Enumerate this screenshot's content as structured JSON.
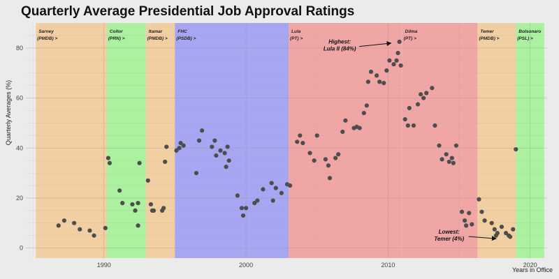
{
  "chart_data": {
    "type": "scatter",
    "title": "Quarterly Average Presidential Job Approval Ratings",
    "xlabel": "Years in Office",
    "ylabel": "Quarterly Averages (%)",
    "xlim": [
      1984.5,
      2021.2
    ],
    "ylim": [
      -4,
      90
    ],
    "xticks": [
      1990,
      2000,
      2010,
      2020
    ],
    "yticks": [
      0,
      20,
      40,
      60,
      80
    ],
    "grid": true,
    "periods": [
      {
        "name": "Sarney",
        "party": "(PMDB) >",
        "start": 1985.2,
        "end": 1990.2,
        "color": "#f1cfa3"
      },
      {
        "name": "Collor",
        "party": "(PRN) >",
        "start": 1990.2,
        "end": 1992.95,
        "color": "#abf1a0"
      },
      {
        "name": "Itamar",
        "party": "(PMDB) >",
        "start": 1992.95,
        "end": 1995.0,
        "color": "#f1cfa3"
      },
      {
        "name": "FHC",
        "party": "(PSDB) >",
        "start": 1995.0,
        "end": 2003.0,
        "color": "#a6a6f2"
      },
      {
        "name": "Lula",
        "party": "(PT) >",
        "start": 2003.0,
        "end": 2011.0,
        "color": "#f1a6a6"
      },
      {
        "name": "Dilma",
        "party": "(PT) >",
        "start": 2011.0,
        "end": 2016.3,
        "color": "#f1a6a6"
      },
      {
        "name": "Temer",
        "party": "(PMDB) >",
        "start": 2016.3,
        "end": 2019.0,
        "color": "#f1cfa3"
      },
      {
        "name": "Bolsonaro",
        "party": "(PSL) >",
        "start": 2019.0,
        "end": 2021.0,
        "color": "#abf1a0"
      }
    ],
    "annotations": [
      {
        "line1": "Highest:",
        "line2": "Lula II (84%)",
        "x": 2006.6,
        "y": 79.5,
        "arrow_to": [
          2010.4,
          82.5
        ]
      },
      {
        "line1": "Lowest:",
        "line2": "Temer (4%)",
        "x": 2014.3,
        "y": 3.5,
        "arrow_to": [
          2017.8,
          3.5
        ]
      }
    ],
    "point_color": "#4d4d4d",
    "points": [
      [
        1986.8,
        9
      ],
      [
        1987.2,
        11
      ],
      [
        1987.9,
        10
      ],
      [
        1988.3,
        7.5
      ],
      [
        1989.0,
        7
      ],
      [
        1989.3,
        5
      ],
      [
        1990.1,
        8
      ],
      [
        1990.3,
        36
      ],
      [
        1990.4,
        34
      ],
      [
        1991.1,
        23
      ],
      [
        1991.3,
        18
      ],
      [
        1992.0,
        17.5
      ],
      [
        1992.2,
        15
      ],
      [
        1992.4,
        18
      ],
      [
        1992.4,
        9
      ],
      [
        1992.5,
        34
      ],
      [
        1993.1,
        27
      ],
      [
        1993.3,
        17.5
      ],
      [
        1993.4,
        15
      ],
      [
        1993.5,
        15
      ],
      [
        1994.1,
        15
      ],
      [
        1994.2,
        16
      ],
      [
        1994.3,
        34.5
      ],
      [
        1994.4,
        40.5
      ],
      [
        1995.1,
        39
      ],
      [
        1995.3,
        40
      ],
      [
        1995.4,
        42
      ],
      [
        1995.6,
        41
      ],
      [
        1996.5,
        30
      ],
      [
        1996.7,
        43
      ],
      [
        1996.9,
        47
      ],
      [
        1997.6,
        40.5
      ],
      [
        1997.8,
        43
      ],
      [
        1997.9,
        37
      ],
      [
        1998.2,
        39
      ],
      [
        1998.5,
        38
      ],
      [
        1998.6,
        32.5
      ],
      [
        1998.7,
        40.5
      ],
      [
        1998.8,
        35
      ],
      [
        1999.4,
        21
      ],
      [
        1999.7,
        16
      ],
      [
        1999.8,
        13
      ],
      [
        2000.0,
        16
      ],
      [
        2000.6,
        18
      ],
      [
        2000.8,
        19
      ],
      [
        2001.2,
        23.5
      ],
      [
        2001.8,
        26
      ],
      [
        2001.9,
        19
      ],
      [
        2002.1,
        24
      ],
      [
        2002.5,
        22
      ],
      [
        2002.9,
        25.5
      ],
      [
        2003.1,
        25
      ],
      [
        2003.6,
        42.5
      ],
      [
        2003.8,
        45
      ],
      [
        2004.0,
        42
      ],
      [
        2004.5,
        38
      ],
      [
        2004.8,
        35
      ],
      [
        2005.0,
        45
      ],
      [
        2005.6,
        35.5
      ],
      [
        2005.8,
        33
      ],
      [
        2005.9,
        28
      ],
      [
        2006.3,
        36
      ],
      [
        2006.5,
        37.5
      ],
      [
        2006.8,
        46.5
      ],
      [
        2007.0,
        51
      ],
      [
        2007.6,
        48
      ],
      [
        2007.8,
        48.5
      ],
      [
        2008.0,
        48
      ],
      [
        2008.3,
        54
      ],
      [
        2008.5,
        57
      ],
      [
        2008.6,
        66.5
      ],
      [
        2008.8,
        70.5
      ],
      [
        2009.2,
        69
      ],
      [
        2009.4,
        66.5
      ],
      [
        2009.7,
        66
      ],
      [
        2009.9,
        71
      ],
      [
        2010.1,
        75
      ],
      [
        2010.4,
        73.5
      ],
      [
        2010.6,
        75
      ],
      [
        2010.7,
        78
      ],
      [
        2010.8,
        82.5
      ],
      [
        2010.9,
        73
      ],
      [
        2011.2,
        51.5
      ],
      [
        2011.4,
        49
      ],
      [
        2011.5,
        56
      ],
      [
        2011.8,
        49
      ],
      [
        2012.1,
        57.5
      ],
      [
        2012.3,
        61.5
      ],
      [
        2012.5,
        60
      ],
      [
        2012.7,
        62
      ],
      [
        2013.1,
        64
      ],
      [
        2013.3,
        49
      ],
      [
        2013.6,
        41
      ],
      [
        2013.8,
        35.5
      ],
      [
        2014.1,
        37.5
      ],
      [
        2014.3,
        34.5
      ],
      [
        2014.5,
        36
      ],
      [
        2014.6,
        34
      ],
      [
        2014.8,
        41
      ],
      [
        2015.2,
        14.5
      ],
      [
        2015.4,
        11
      ],
      [
        2015.5,
        9
      ],
      [
        2015.7,
        14
      ],
      [
        2015.9,
        9.5
      ],
      [
        2016.4,
        19.5
      ],
      [
        2016.6,
        14.5
      ],
      [
        2016.8,
        11
      ],
      [
        2017.3,
        10
      ],
      [
        2017.5,
        7.5
      ],
      [
        2017.6,
        5
      ],
      [
        2017.7,
        6
      ],
      [
        2018.0,
        8.5
      ],
      [
        2018.3,
        6
      ],
      [
        2018.5,
        5
      ],
      [
        2018.6,
        4.5
      ],
      [
        2018.8,
        7.5
      ],
      [
        2019.0,
        39.5
      ]
    ]
  }
}
